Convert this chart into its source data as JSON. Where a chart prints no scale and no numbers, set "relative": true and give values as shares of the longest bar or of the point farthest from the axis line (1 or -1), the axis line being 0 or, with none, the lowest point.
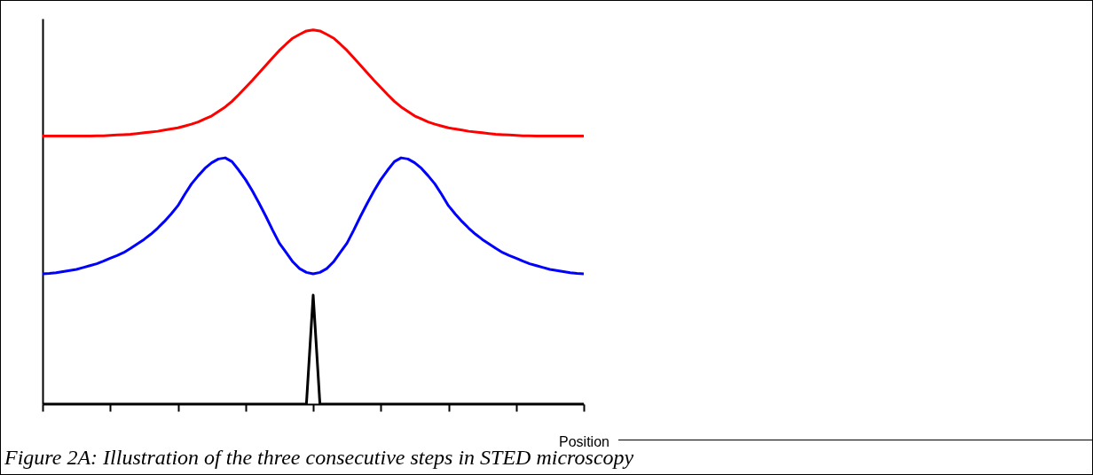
{
  "chart_data": {
    "type": "line",
    "xlabel": "Position",
    "annotations": [
      "Figure 2A: Illustration of the three consecutive steps in STED microscopy"
    ],
    "relative": true,
    "grid": false,
    "categories": [
      null,
      null,
      null,
      null,
      null,
      null,
      null,
      null,
      null,
      null,
      null,
      null,
      null,
      null,
      null,
      null,
      null,
      null,
      null,
      null,
      null,
      null,
      null,
      null,
      null,
      null,
      null,
      null,
      null,
      null,
      null,
      null,
      null,
      null,
      null,
      null,
      null,
      null,
      null,
      null,
      null,
      null,
      null,
      null,
      null,
      null,
      null,
      null,
      null,
      null,
      null,
      null,
      null,
      null,
      null,
      null,
      null,
      null,
      null,
      null,
      null,
      null,
      null,
      null,
      null,
      null,
      null,
      null,
      null,
      null,
      null,
      null,
      null,
      null,
      null,
      null,
      null,
      null,
      null,
      null,
      null
    ],
    "series": [
      {
        "color": "#ff0000",
        "values": [
          0.716,
          0.716,
          0.716,
          0.716,
          0.716,
          0.716,
          0.716,
          0.716,
          0.717,
          0.717,
          0.718,
          0.719,
          0.72,
          0.721,
          0.723,
          0.725,
          0.727,
          0.729,
          0.732,
          0.735,
          0.738,
          0.743,
          0.748,
          0.754,
          0.762,
          0.77,
          0.782,
          0.794,
          0.809,
          0.827,
          0.846,
          0.865,
          0.885,
          0.905,
          0.925,
          0.945,
          0.962,
          0.978,
          0.988,
          0.997,
          1,
          0.997,
          0.988,
          0.978,
          0.962,
          0.945,
          0.925,
          0.905,
          0.885,
          0.865,
          0.846,
          0.827,
          0.809,
          0.794,
          0.782,
          0.77,
          0.762,
          0.754,
          0.748,
          0.743,
          0.738,
          0.735,
          0.732,
          0.729,
          0.727,
          0.725,
          0.723,
          0.721,
          0.72,
          0.719,
          0.718,
          0.717,
          0.717,
          0.716,
          0.716,
          0.716,
          0.716,
          0.716,
          0.716,
          0.716,
          0.716
        ]
      },
      {
        "color": "#0000ff",
        "values": [
          0.348,
          0.349,
          0.351,
          0.354,
          0.357,
          0.36,
          0.365,
          0.37,
          0.375,
          0.382,
          0.39,
          0.397,
          0.405,
          0.416,
          0.428,
          0.44,
          0.454,
          0.47,
          0.488,
          0.508,
          0.53,
          0.56,
          0.588,
          0.61,
          0.63,
          0.645,
          0.655,
          0.658,
          0.648,
          0.625,
          0.6,
          0.57,
          0.537,
          0.502,
          0.465,
          0.43,
          0.405,
          0.38,
          0.362,
          0.352,
          0.348,
          0.352,
          0.362,
          0.38,
          0.405,
          0.43,
          0.465,
          0.502,
          0.537,
          0.57,
          0.6,
          0.625,
          0.648,
          0.658,
          0.655,
          0.645,
          0.63,
          0.61,
          0.588,
          0.56,
          0.53,
          0.508,
          0.488,
          0.47,
          0.454,
          0.44,
          0.428,
          0.416,
          0.405,
          0.397,
          0.39,
          0.382,
          0.375,
          0.37,
          0.365,
          0.36,
          0.357,
          0.354,
          0.351,
          0.349,
          0.348
        ]
      },
      {
        "color": "#000000",
        "values": [
          0,
          0,
          0,
          0,
          0,
          0,
          0,
          0,
          0,
          0,
          0,
          0,
          0,
          0,
          0,
          0,
          0,
          0,
          0,
          0,
          0,
          0,
          0,
          0,
          0,
          0,
          0,
          0,
          0,
          0,
          0,
          0,
          0,
          0,
          0,
          0,
          0,
          0,
          0,
          0,
          0.291,
          0,
          0,
          0,
          0,
          0,
          0,
          0,
          0,
          0,
          0,
          0,
          0,
          0,
          0,
          0,
          0,
          0,
          0,
          0,
          0,
          0,
          0,
          0,
          0,
          0,
          0,
          0,
          0,
          0,
          0,
          0,
          0,
          0,
          0,
          0,
          0,
          0,
          0,
          0,
          0
        ]
      }
    ]
  }
}
